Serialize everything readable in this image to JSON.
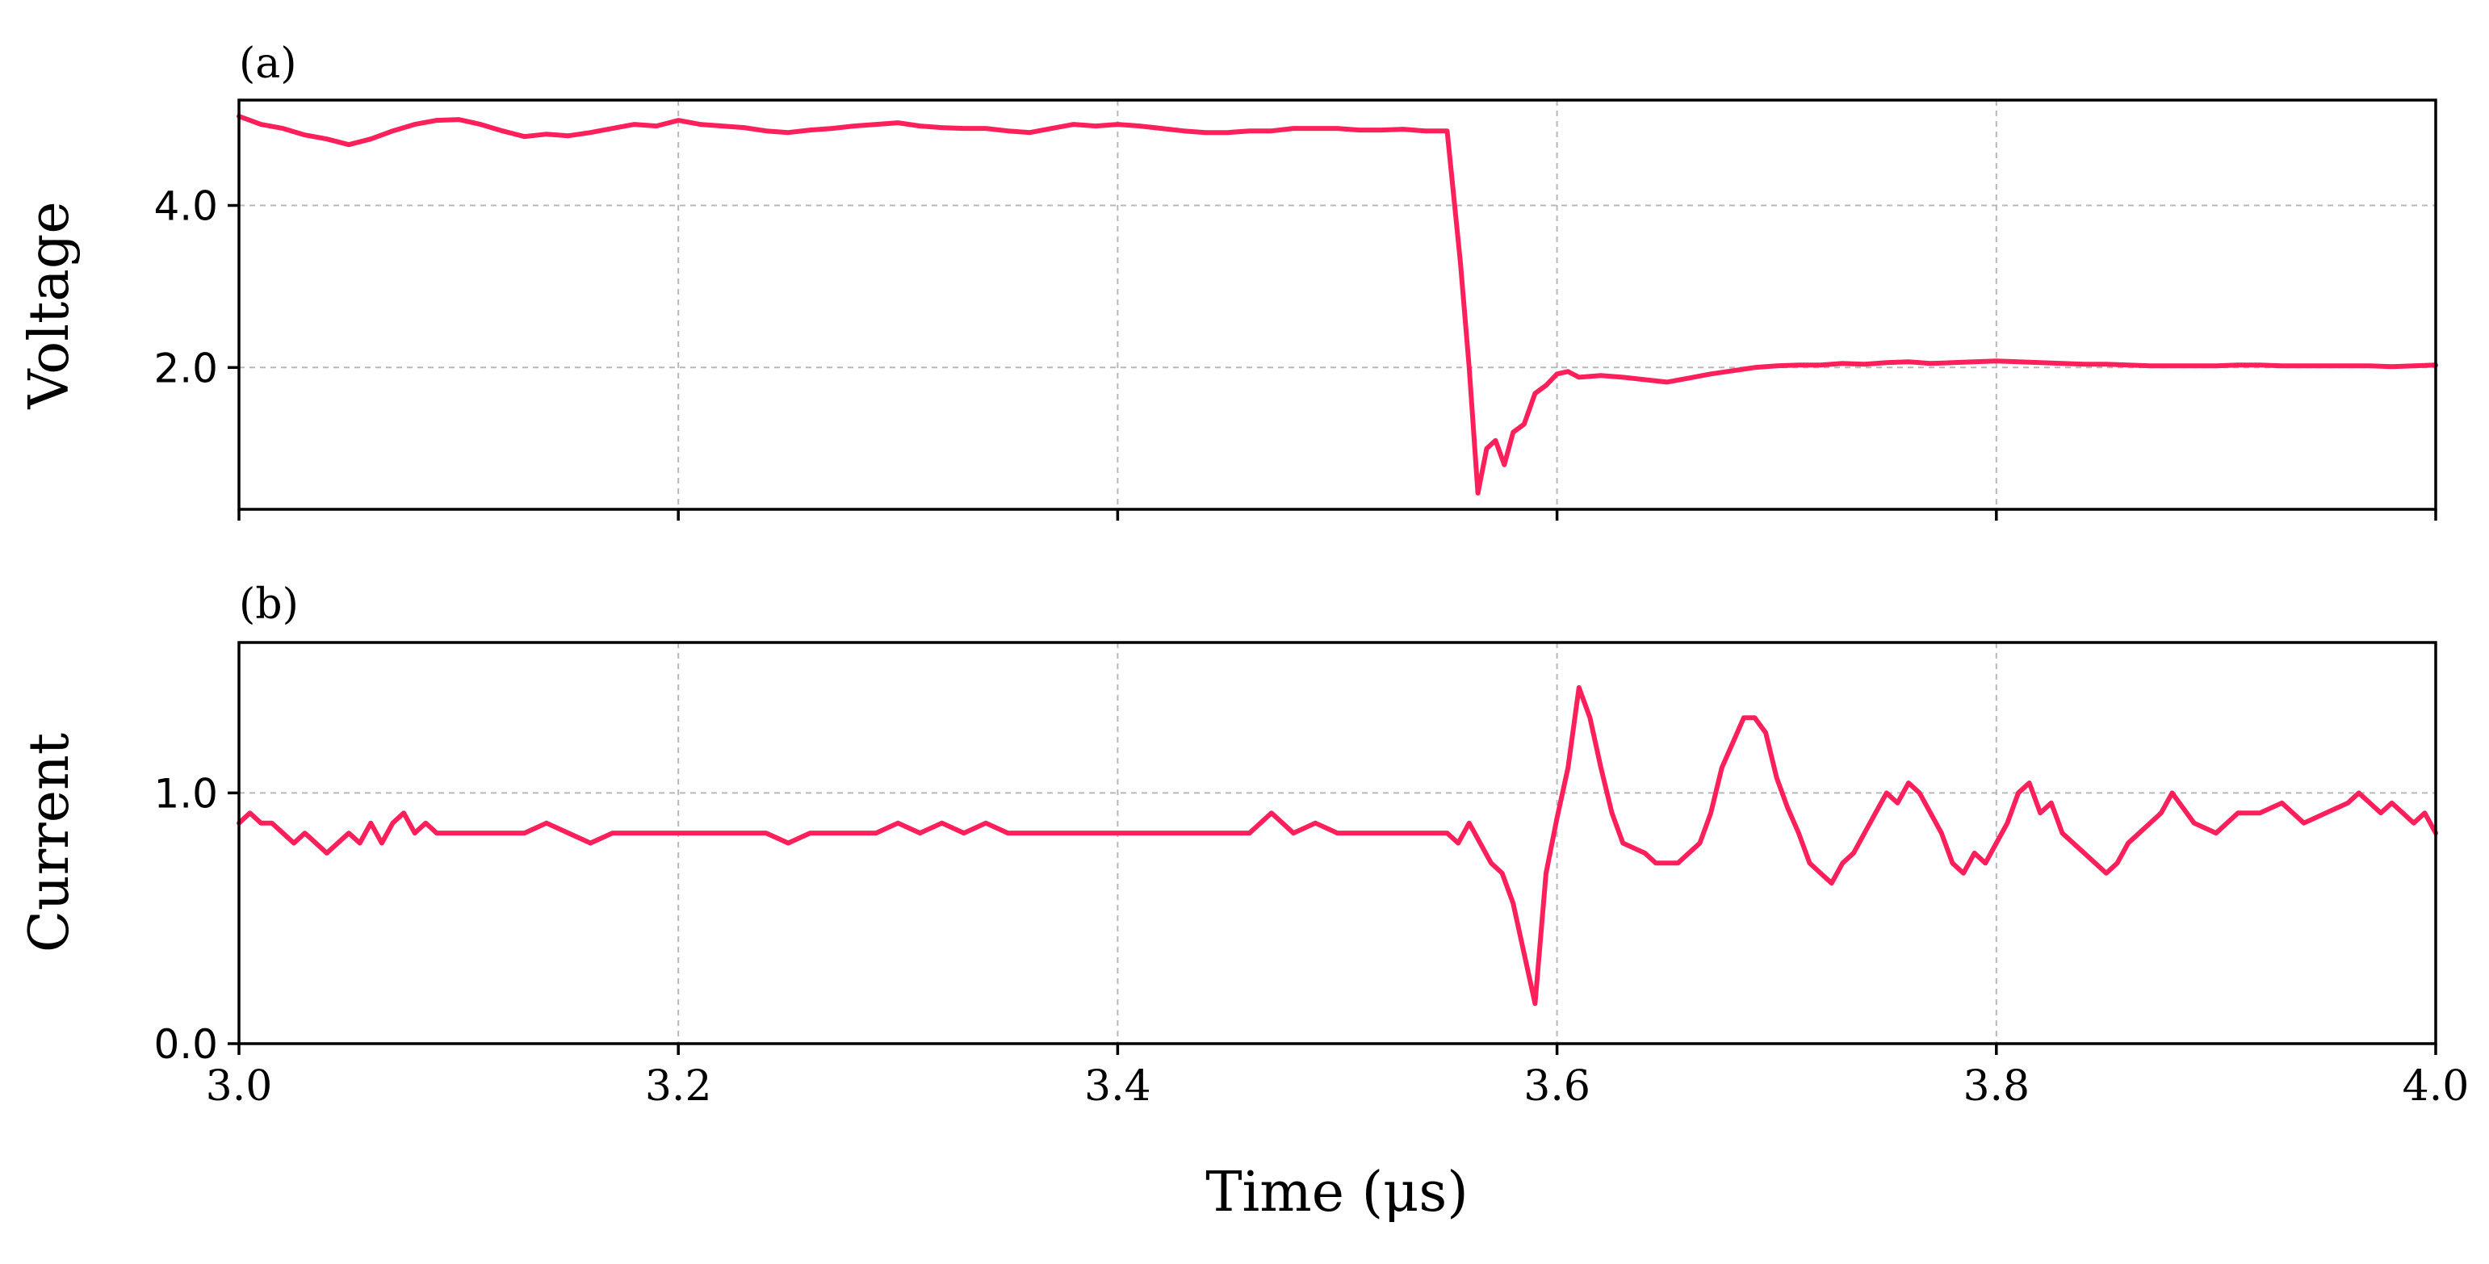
{
  "chart_data": [
    {
      "type": "line",
      "panel_label": "(a)",
      "ylabel": "Voltage",
      "xlabel": "",
      "xlim": [
        3.0,
        4.0
      ],
      "ylim": [
        0.25,
        5.3
      ],
      "xticks": [
        3.0,
        3.2,
        3.4,
        3.6,
        3.8,
        4.0
      ],
      "xtick_labels": [
        "",
        "",
        "",
        "",
        "",
        ""
      ],
      "yticks": [
        2.0,
        4.0
      ],
      "ytick_labels": [
        "2.0",
        "4.0"
      ],
      "grid": true,
      "series": [
        {
          "color": "#ff1f5a",
          "x": [
            3.0,
            3.01,
            3.02,
            3.03,
            3.04,
            3.05,
            3.06,
            3.07,
            3.08,
            3.09,
            3.1,
            3.11,
            3.12,
            3.13,
            3.14,
            3.15,
            3.16,
            3.17,
            3.18,
            3.19,
            3.2,
            3.21,
            3.22,
            3.23,
            3.24,
            3.25,
            3.26,
            3.27,
            3.28,
            3.29,
            3.3,
            3.31,
            3.32,
            3.33,
            3.34,
            3.35,
            3.36,
            3.37,
            3.38,
            3.39,
            3.4,
            3.41,
            3.42,
            3.43,
            3.44,
            3.45,
            3.46,
            3.47,
            3.48,
            3.49,
            3.5,
            3.51,
            3.52,
            3.53,
            3.54,
            3.55,
            3.556,
            3.56,
            3.564,
            3.568,
            3.572,
            3.576,
            3.58,
            3.585,
            3.59,
            3.595,
            3.6,
            3.605,
            3.61,
            3.62,
            3.63,
            3.64,
            3.65,
            3.66,
            3.67,
            3.68,
            3.69,
            3.7,
            3.71,
            3.72,
            3.73,
            3.74,
            3.75,
            3.76,
            3.77,
            3.78,
            3.79,
            3.8,
            3.81,
            3.82,
            3.83,
            3.84,
            3.85,
            3.86,
            3.87,
            3.88,
            3.89,
            3.9,
            3.91,
            3.92,
            3.93,
            3.94,
            3.95,
            3.96,
            3.97,
            3.98,
            3.99,
            4.0
          ],
          "y": [
            5.1,
            5.0,
            4.95,
            4.87,
            4.82,
            4.75,
            4.82,
            4.92,
            5.0,
            5.05,
            5.06,
            5.0,
            4.92,
            4.85,
            4.88,
            4.86,
            4.9,
            4.95,
            5.0,
            4.98,
            5.05,
            5.0,
            4.98,
            4.96,
            4.92,
            4.9,
            4.93,
            4.95,
            4.98,
            5.0,
            5.02,
            4.98,
            4.96,
            4.95,
            4.95,
            4.92,
            4.9,
            4.95,
            5.0,
            4.98,
            5.0,
            4.98,
            4.95,
            4.92,
            4.9,
            4.9,
            4.92,
            4.92,
            4.95,
            4.95,
            4.95,
            4.93,
            4.93,
            4.94,
            4.92,
            4.92,
            3.3,
            2.0,
            0.45,
            1.0,
            1.1,
            0.8,
            1.2,
            1.3,
            1.68,
            1.78,
            1.92,
            1.95,
            1.88,
            1.9,
            1.88,
            1.85,
            1.82,
            1.87,
            1.92,
            1.96,
            2.0,
            2.02,
            2.03,
            2.03,
            2.05,
            2.04,
            2.06,
            2.07,
            2.05,
            2.06,
            2.07,
            2.08,
            2.07,
            2.06,
            2.05,
            2.04,
            2.04,
            2.03,
            2.02,
            2.02,
            2.02,
            2.02,
            2.03,
            2.03,
            2.02,
            2.02,
            2.02,
            2.02,
            2.02,
            2.01,
            2.02,
            2.03
          ]
        }
      ]
    },
    {
      "type": "line",
      "panel_label": "(b)",
      "ylabel": "Current",
      "xlabel": "Time (μs)",
      "xlim": [
        3.0,
        4.0
      ],
      "ylim": [
        0.0,
        1.6
      ],
      "xticks": [
        3.0,
        3.2,
        3.4,
        3.6,
        3.8,
        4.0
      ],
      "xtick_labels": [
        "3.0",
        "3.2",
        "3.4",
        "3.6",
        "3.8",
        "4.0"
      ],
      "yticks": [
        0.0,
        1.0
      ],
      "ytick_labels": [
        "0.0",
        "1.0"
      ],
      "grid": true,
      "series": [
        {
          "color": "#ff1f5a",
          "x": [
            3.0,
            3.005,
            3.01,
            3.015,
            3.02,
            3.025,
            3.03,
            3.035,
            3.04,
            3.045,
            3.05,
            3.055,
            3.06,
            3.065,
            3.07,
            3.075,
            3.08,
            3.085,
            3.09,
            3.1,
            3.11,
            3.12,
            3.13,
            3.14,
            3.15,
            3.16,
            3.17,
            3.18,
            3.19,
            3.2,
            3.21,
            3.22,
            3.23,
            3.24,
            3.25,
            3.26,
            3.27,
            3.28,
            3.29,
            3.3,
            3.31,
            3.32,
            3.33,
            3.34,
            3.35,
            3.36,
            3.37,
            3.38,
            3.39,
            3.4,
            3.41,
            3.42,
            3.43,
            3.44,
            3.45,
            3.46,
            3.47,
            3.48,
            3.49,
            3.5,
            3.51,
            3.52,
            3.53,
            3.54,
            3.55,
            3.555,
            3.56,
            3.565,
            3.57,
            3.575,
            3.58,
            3.585,
            3.59,
            3.595,
            3.6,
            3.605,
            3.61,
            3.615,
            3.62,
            3.625,
            3.63,
            3.635,
            3.64,
            3.645,
            3.65,
            3.655,
            3.66,
            3.665,
            3.67,
            3.675,
            3.68,
            3.685,
            3.69,
            3.695,
            3.7,
            3.705,
            3.71,
            3.715,
            3.72,
            3.725,
            3.73,
            3.735,
            3.74,
            3.745,
            3.75,
            3.755,
            3.76,
            3.765,
            3.77,
            3.775,
            3.78,
            3.785,
            3.79,
            3.795,
            3.8,
            3.805,
            3.81,
            3.815,
            3.82,
            3.825,
            3.83,
            3.835,
            3.84,
            3.845,
            3.85,
            3.855,
            3.86,
            3.865,
            3.87,
            3.875,
            3.88,
            3.89,
            3.9,
            3.91,
            3.92,
            3.93,
            3.94,
            3.95,
            3.96,
            3.965,
            3.97,
            3.975,
            3.98,
            3.985,
            3.99,
            3.995,
            4.0
          ],
          "y": [
            0.88,
            0.92,
            0.88,
            0.88,
            0.84,
            0.8,
            0.84,
            0.8,
            0.76,
            0.8,
            0.84,
            0.8,
            0.88,
            0.8,
            0.88,
            0.92,
            0.84,
            0.88,
            0.84,
            0.84,
            0.84,
            0.84,
            0.84,
            0.88,
            0.84,
            0.8,
            0.84,
            0.84,
            0.84,
            0.84,
            0.84,
            0.84,
            0.84,
            0.84,
            0.8,
            0.84,
            0.84,
            0.84,
            0.84,
            0.88,
            0.84,
            0.88,
            0.84,
            0.88,
            0.84,
            0.84,
            0.84,
            0.84,
            0.84,
            0.84,
            0.84,
            0.84,
            0.84,
            0.84,
            0.84,
            0.84,
            0.92,
            0.84,
            0.88,
            0.84,
            0.84,
            0.84,
            0.84,
            0.84,
            0.84,
            0.8,
            0.88,
            0.8,
            0.72,
            0.68,
            0.56,
            0.36,
            0.16,
            0.68,
            0.9,
            1.1,
            1.42,
            1.3,
            1.1,
            0.92,
            0.8,
            0.78,
            0.76,
            0.72,
            0.72,
            0.72,
            0.76,
            0.8,
            0.92,
            1.1,
            1.2,
            1.3,
            1.3,
            1.24,
            1.06,
            0.94,
            0.84,
            0.72,
            0.68,
            0.64,
            0.72,
            0.76,
            0.84,
            0.92,
            1.0,
            0.96,
            1.04,
            1.0,
            0.92,
            0.84,
            0.72,
            0.68,
            0.76,
            0.72,
            0.8,
            0.88,
            1.0,
            1.04,
            0.92,
            0.96,
            0.84,
            0.8,
            0.76,
            0.72,
            0.68,
            0.72,
            0.8,
            0.84,
            0.88,
            0.92,
            1.0,
            0.88,
            0.84,
            0.92,
            0.92,
            0.96,
            0.88,
            0.92,
            0.96,
            1.0,
            0.96,
            0.92,
            0.96,
            0.92,
            0.88,
            0.92,
            0.84
          ]
        }
      ]
    }
  ]
}
